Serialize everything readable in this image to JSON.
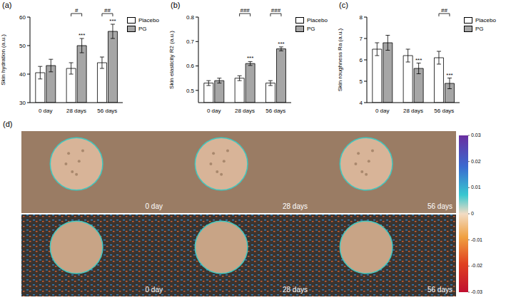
{
  "chart_data": [
    {
      "type": "bar",
      "panel": "(a)",
      "ylabel": "Skin hydration (a.u.)",
      "categories": [
        "0 day",
        "28 days",
        "56 days"
      ],
      "series": [
        {
          "name": "Placebo",
          "color": "#ffffff",
          "values": [
            40.5,
            42,
            44
          ],
          "errors": [
            2.2,
            2,
            2
          ]
        },
        {
          "name": "PG",
          "color": "#a6a6a6",
          "values": [
            43,
            50,
            55
          ],
          "errors": [
            2.2,
            2.5,
            2.5
          ],
          "annotations": [
            null,
            "***",
            "***"
          ]
        }
      ],
      "annotations": [
        null,
        "#",
        "##"
      ],
      "ylim": [
        30,
        60
      ],
      "yticks": [
        30,
        40,
        50,
        60
      ],
      "legend": "top right"
    },
    {
      "type": "bar",
      "panel": "(b)",
      "ylabel": "Skin elasticity R2 (a.u.)",
      "categories": [
        "0 day",
        "28 days",
        "56 days"
      ],
      "series": [
        {
          "name": "Placebo",
          "color": "#ffffff",
          "values": [
            0.53,
            0.55,
            0.53
          ],
          "errors": [
            0.01,
            0.01,
            0.01
          ]
        },
        {
          "name": "PG",
          "color": "#a6a6a6",
          "values": [
            0.54,
            0.61,
            0.67
          ],
          "errors": [
            0.01,
            0.008,
            0.008
          ],
          "annotations": [
            null,
            "***",
            "***"
          ]
        }
      ],
      "annotations": [
        null,
        "###",
        "###"
      ],
      "ylim": [
        0.45,
        0.8
      ],
      "yticks": [
        0.5,
        0.6,
        0.7,
        0.8
      ],
      "legend": "top right"
    },
    {
      "type": "bar",
      "panel": "(c)",
      "ylabel": "Skin roughness Ra (a.u.)",
      "categories": [
        "0 day",
        "28 days",
        "56 days"
      ],
      "series": [
        {
          "name": "Placebo",
          "color": "#ffffff",
          "values": [
            6.5,
            6.2,
            6.1
          ],
          "errors": [
            0.3,
            0.3,
            0.3
          ]
        },
        {
          "name": "PG",
          "color": "#a6a6a6",
          "values": [
            6.8,
            5.6,
            4.9
          ],
          "errors": [
            0.35,
            0.25,
            0.25
          ],
          "annotations": [
            null,
            "***",
            "***"
          ]
        }
      ],
      "annotations": [
        null,
        null,
        "##"
      ],
      "ylim": [
        4,
        8
      ],
      "yticks": [
        4,
        5,
        6,
        7,
        8
      ],
      "legend": "top right"
    }
  ],
  "panel_d": {
    "panel": "(d)",
    "rows": [
      {
        "captions": [
          "0 day",
          "28 days",
          "56 days"
        ]
      },
      {
        "captions": [
          "0 day",
          "28 days",
          "56 days"
        ]
      }
    ],
    "colorbar": {
      "range": [
        -0.03,
        0.03
      ],
      "ticks": [
        0.03,
        0.02,
        0.01,
        0,
        -0.01,
        -0.02,
        -0.03
      ]
    }
  }
}
